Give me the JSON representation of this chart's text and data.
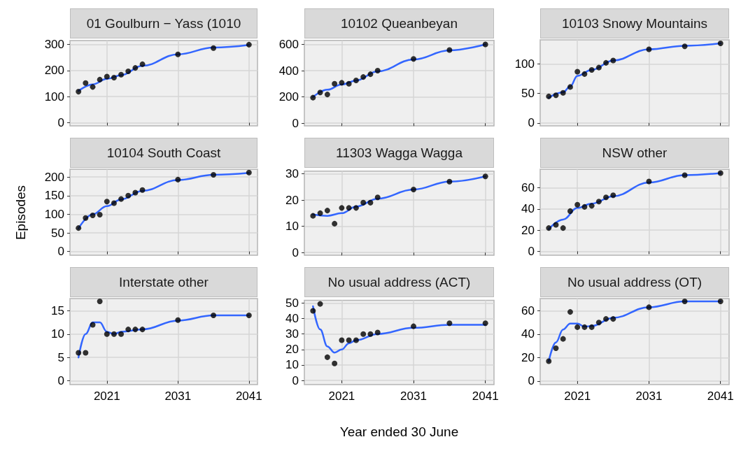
{
  "chart_data": [
    {
      "type": "scatter",
      "title": "01 Goulburn − Yass (1010",
      "x": [
        2017,
        2018,
        2019,
        2020,
        2021,
        2022,
        2023,
        2024,
        2025,
        2026,
        2031,
        2036,
        2041
      ],
      "marker": "circle",
      "grid": true,
      "tick_labels": "y",
      "xlim": [
        2015.8,
        2042.2
      ],
      "xticks": [
        2021,
        2031,
        2041
      ],
      "ylim": [
        -12,
        315
      ],
      "yticks": [
        0,
        100,
        200,
        300
      ],
      "series": [
        {
          "type": "line",
          "marker": "none",
          "color": "#3366ff",
          "x": [
            2017,
            2019,
            2021,
            2023,
            2026,
            2031,
            2036,
            2041
          ],
          "values": [
            122,
            147,
            168,
            182,
            218,
            262,
            288,
            298
          ]
        },
        {
          "color": "#000000",
          "values": [
            119,
            152,
            137,
            165,
            177,
            173,
            184,
            197,
            210,
            224,
            262,
            286,
            299
          ]
        }
      ]
    },
    {
      "type": "scatter",
      "title": "10102 Queanbeyan",
      "x": [
        2017,
        2018,
        2019,
        2020,
        2021,
        2022,
        2023,
        2024,
        2025,
        2026,
        2031,
        2036,
        2041
      ],
      "marker": "circle",
      "grid": true,
      "tick_labels": "y",
      "xlim": [
        2015.8,
        2042.2
      ],
      "xticks": [
        2021,
        2031,
        2041
      ],
      "ylim": [
        -20,
        630
      ],
      "yticks": [
        0,
        200,
        400,
        600
      ],
      "series": [
        {
          "type": "line",
          "marker": "none",
          "color": "#3366ff",
          "x": [
            2017,
            2019,
            2021,
            2023,
            2026,
            2031,
            2036,
            2041
          ],
          "values": [
            200,
            255,
            295,
            325,
            395,
            485,
            555,
            600
          ]
        },
        {
          "color": "#000000",
          "values": [
            195,
            234,
            219,
            301,
            308,
            301,
            326,
            352,
            373,
            400,
            490,
            557,
            600
          ]
        }
      ]
    },
    {
      "type": "scatter",
      "title": "10103 Snowy Mountains",
      "x": [
        2017,
        2018,
        2019,
        2020,
        2021,
        2022,
        2023,
        2024,
        2025,
        2026,
        2031,
        2036,
        2041
      ],
      "marker": "circle",
      "grid": true,
      "tick_labels": "y",
      "xlim": [
        2015.8,
        2042.2
      ],
      "xticks": [
        2021,
        2031,
        2041
      ],
      "ylim": [
        -5,
        141
      ],
      "yticks": [
        0,
        50,
        100
      ],
      "series": [
        {
          "type": "line",
          "marker": "none",
          "color": "#3366ff",
          "x": [
            2017,
            2019,
            2020,
            2021,
            2023,
            2026,
            2031,
            2036,
            2041
          ],
          "values": [
            43,
            52,
            62,
            80,
            90,
            106,
            125,
            131,
            135
          ]
        },
        {
          "color": "#000000",
          "values": [
            45,
            47,
            51,
            61,
            87,
            83,
            90,
            94,
            102,
            106,
            125,
            130,
            135
          ]
        }
      ]
    },
    {
      "type": "scatter",
      "title": "10104 South Coast",
      "ylabel": "Episodes",
      "x": [
        2017,
        2018,
        2019,
        2020,
        2021,
        2022,
        2023,
        2024,
        2025,
        2026,
        2031,
        2036,
        2041
      ],
      "marker": "circle",
      "grid": true,
      "tick_labels": "y",
      "xlim": [
        2015.8,
        2042.2
      ],
      "xticks": [
        2021,
        2031,
        2041
      ],
      "ylim": [
        -10,
        221
      ],
      "yticks": [
        0,
        50,
        100,
        150,
        200
      ],
      "series": [
        {
          "type": "line",
          "marker": "none",
          "color": "#3366ff",
          "x": [
            2017,
            2019,
            2021,
            2023,
            2026,
            2031,
            2036,
            2041
          ],
          "values": [
            62,
            100,
            122,
            140,
            163,
            192,
            206,
            211
          ]
        },
        {
          "color": "#000000",
          "values": [
            63,
            90,
            97,
            99,
            134,
            130,
            141,
            150,
            158,
            165,
            193,
            206,
            212
          ]
        }
      ]
    },
    {
      "type": "scatter",
      "title": "11303 Wagga Wagga",
      "x": [
        2017,
        2018,
        2019,
        2020,
        2021,
        2022,
        2023,
        2024,
        2025,
        2026,
        2031,
        2036,
        2041
      ],
      "marker": "circle",
      "grid": true,
      "tick_labels": "y",
      "xlim": [
        2015.8,
        2042.2
      ],
      "xticks": [
        2021,
        2031,
        2041
      ],
      "ylim": [
        -1,
        31
      ],
      "yticks": [
        0,
        10,
        20,
        30
      ],
      "series": [
        {
          "type": "line",
          "marker": "none",
          "color": "#3366ff",
          "x": [
            2017,
            2019,
            2021,
            2023,
            2026,
            2031,
            2036,
            2041
          ],
          "values": [
            14.5,
            14,
            15,
            17.5,
            20.5,
            24,
            27,
            29
          ]
        },
        {
          "color": "#000000",
          "values": [
            14,
            15,
            16,
            11,
            17,
            17,
            17,
            19,
            19,
            21,
            24,
            27,
            29
          ]
        }
      ]
    },
    {
      "type": "scatter",
      "title": "NSW other",
      "x": [
        2017,
        2018,
        2019,
        2020,
        2021,
        2022,
        2023,
        2024,
        2025,
        2026,
        2031,
        2036,
        2041
      ],
      "marker": "circle",
      "grid": true,
      "tick_labels": "y",
      "xlim": [
        2015.8,
        2042.2
      ],
      "xticks": [
        2021,
        2031,
        2041
      ],
      "ylim": [
        -3.7,
        77.6
      ],
      "yticks": [
        0,
        20,
        40,
        60
      ],
      "series": [
        {
          "type": "line",
          "marker": "none",
          "color": "#3366ff",
          "x": [
            2017,
            2019,
            2021,
            2023,
            2026,
            2031,
            2036,
            2041
          ],
          "values": [
            21,
            30,
            41,
            45,
            52,
            65,
            72,
            74
          ]
        },
        {
          "color": "#000000",
          "values": [
            22,
            25,
            22,
            38,
            44,
            42,
            43,
            47,
            51,
            53,
            66,
            72,
            74
          ]
        }
      ]
    },
    {
      "type": "scatter",
      "title": "Interstate other",
      "x": [
        2017,
        2018,
        2019,
        2020,
        2021,
        2022,
        2023,
        2024,
        2025,
        2026,
        2031,
        2036,
        2041
      ],
      "marker": "circle",
      "grid": true,
      "xlim": [
        2015.8,
        2042.2
      ],
      "xticks": [
        2021,
        2031,
        2041
      ],
      "ylim": [
        -0.8,
        17.6
      ],
      "yticks": [
        0,
        5,
        10,
        15
      ],
      "series": [
        {
          "type": "line",
          "marker": "none",
          "color": "#3366ff",
          "x": [
            2017,
            2018,
            2019,
            2020,
            2021,
            2022,
            2023,
            2026,
            2031,
            2036,
            2041
          ],
          "values": [
            5,
            10,
            12.5,
            12.5,
            10.5,
            10,
            10.5,
            11,
            12.9,
            14,
            14
          ]
        },
        {
          "color": "#000000",
          "values": [
            6,
            6,
            12,
            17,
            10,
            10,
            10,
            11,
            11,
            11,
            13,
            14,
            14
          ]
        }
      ]
    },
    {
      "type": "scatter",
      "title": "No usual address (ACT)",
      "xlabel": "Year ended 30 June",
      "x": [
        2017,
        2018,
        2019,
        2020,
        2021,
        2022,
        2023,
        2024,
        2025,
        2026,
        2031,
        2036,
        2041
      ],
      "marker": "circle",
      "grid": true,
      "xlim": [
        2015.8,
        2042.2
      ],
      "xticks": [
        2021,
        2031,
        2041
      ],
      "ylim": [
        -2.7,
        51.8
      ],
      "yticks": [
        0,
        10,
        20,
        30,
        40,
        50
      ],
      "series": [
        {
          "type": "line",
          "marker": "none",
          "color": "#3366ff",
          "x": [
            2017,
            2018,
            2019,
            2020,
            2021,
            2022,
            2023,
            2026,
            2031,
            2036,
            2041
          ],
          "values": [
            48,
            33,
            22,
            18,
            20,
            24,
            26,
            30,
            34,
            36,
            36
          ]
        },
        {
          "color": "#000000",
          "values": [
            45,
            49.5,
            15,
            11,
            26,
            26,
            26,
            30,
            30,
            31,
            35,
            37,
            37
          ]
        }
      ]
    },
    {
      "type": "scatter",
      "title": "No usual address (OT)",
      "x": [
        2017,
        2018,
        2019,
        2020,
        2021,
        2022,
        2023,
        2024,
        2025,
        2026,
        2031,
        2036,
        2041
      ],
      "marker": "circle",
      "grid": true,
      "xlim": [
        2015.8,
        2042.2
      ],
      "xticks": [
        2021,
        2031,
        2041
      ],
      "ylim": [
        -3,
        70.4
      ],
      "yticks": [
        0,
        20,
        40,
        60
      ],
      "series": [
        {
          "type": "line",
          "marker": "none",
          "color": "#3366ff",
          "x": [
            2017,
            2018,
            2019,
            2020,
            2021,
            2022,
            2023,
            2026,
            2031,
            2036,
            2041
          ],
          "values": [
            17,
            33,
            44,
            49,
            49,
            46.5,
            47,
            54,
            63,
            68,
            68
          ]
        },
        {
          "color": "#000000",
          "values": [
            17,
            28,
            36,
            59,
            46,
            46,
            46,
            50,
            53,
            53,
            63,
            68,
            68
          ]
        }
      ]
    }
  ]
}
